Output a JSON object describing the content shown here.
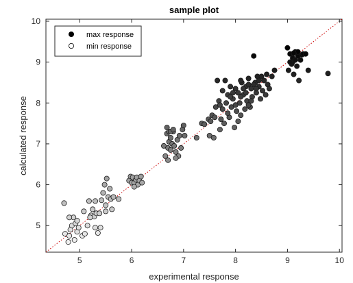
{
  "chart_data": {
    "type": "scatter",
    "title": "sample plot",
    "xlabel": "experimental response",
    "ylabel": "calculated response",
    "xlim": [
      4.35,
      10.05
    ],
    "ylim": [
      4.35,
      10.05
    ],
    "xticks": [
      5,
      6,
      7,
      8,
      9,
      10
    ],
    "yticks": [
      5,
      6,
      7,
      8,
      9,
      10
    ],
    "grid": false,
    "reference_line": {
      "style": "dotted",
      "color": "#cc0000",
      "from": [
        4.35,
        4.35
      ],
      "to": [
        10.05,
        10.05
      ]
    },
    "legend": {
      "position": "top-left",
      "entries": [
        {
          "label": "max response",
          "fill": "#000000"
        },
        {
          "label": "min response",
          "fill": "#ffffff"
        }
      ]
    },
    "series": [
      {
        "fill_by_value": true,
        "fill_range": [
          "#ffffff",
          "#000000"
        ],
        "points": [
          [
            4.7,
            5.55
          ],
          [
            4.72,
            4.8
          ],
          [
            4.78,
            4.6
          ],
          [
            4.8,
            4.75
          ],
          [
            4.82,
            4.9
          ],
          [
            4.85,
            5.0
          ],
          [
            4.88,
            5.2
          ],
          [
            4.9,
            4.65
          ],
          [
            4.92,
            5.05
          ],
          [
            4.95,
            4.85
          ],
          [
            4.95,
            5.12
          ],
          [
            4.98,
            4.95
          ],
          [
            5.05,
            4.75
          ],
          [
            5.08,
            5.35
          ],
          [
            5.1,
            4.8
          ],
          [
            4.8,
            5.2
          ],
          [
            5.15,
            5.0
          ],
          [
            5.18,
            5.6
          ],
          [
            5.22,
            5.25
          ],
          [
            5.25,
            5.4
          ],
          [
            5.28,
            5.22
          ],
          [
            5.3,
            5.6
          ],
          [
            5.32,
            5.3
          ],
          [
            5.35,
            4.82
          ],
          [
            5.38,
            5.3
          ],
          [
            5.4,
            4.95
          ],
          [
            5.42,
            5.62
          ],
          [
            5.45,
            5.8
          ],
          [
            5.48,
            6.0
          ],
          [
            5.5,
            5.5
          ],
          [
            5.52,
            6.15
          ],
          [
            5.55,
            5.7
          ],
          [
            5.58,
            5.9
          ],
          [
            5.6,
            5.65
          ],
          [
            5.62,
            5.4
          ],
          [
            5.65,
            5.7
          ],
          [
            5.5,
            5.35
          ],
          [
            5.75,
            5.65
          ],
          [
            5.2,
            5.2
          ],
          [
            5.3,
            4.95
          ],
          [
            5.95,
            6.1
          ],
          [
            5.98,
            6.2
          ],
          [
            6.0,
            6.05
          ],
          [
            6.02,
            6.18
          ],
          [
            6.05,
            6.05
          ],
          [
            6.08,
            6.12
          ],
          [
            6.1,
            6.18
          ],
          [
            6.12,
            6.0
          ],
          [
            6.15,
            6.1
          ],
          [
            6.18,
            6.2
          ],
          [
            6.2,
            6.05
          ],
          [
            6.05,
            5.95
          ],
          [
            6.62,
            6.95
          ],
          [
            6.65,
            6.7
          ],
          [
            6.68,
            7.25
          ],
          [
            6.7,
            6.9
          ],
          [
            6.72,
            7.3
          ],
          [
            6.72,
            7.05
          ],
          [
            6.75,
            6.85
          ],
          [
            6.75,
            7.15
          ],
          [
            6.78,
            7.0
          ],
          [
            6.8,
            7.3
          ],
          [
            6.82,
            6.95
          ],
          [
            6.85,
            6.8
          ],
          [
            6.88,
            7.1
          ],
          [
            6.9,
            6.7
          ],
          [
            6.92,
            7.2
          ],
          [
            6.95,
            6.9
          ],
          [
            6.98,
            7.35
          ],
          [
            6.7,
            6.6
          ],
          [
            6.68,
            7.4
          ],
          [
            6.85,
            6.65
          ],
          [
            7.0,
            7.45
          ],
          [
            7.02,
            7.2
          ],
          [
            6.75,
            7.3
          ],
          [
            6.8,
            7.35
          ],
          [
            7.25,
            7.15
          ],
          [
            7.35,
            7.5
          ],
          [
            7.4,
            7.48
          ],
          [
            7.48,
            7.6
          ],
          [
            7.5,
            7.2
          ],
          [
            7.52,
            7.55
          ],
          [
            7.55,
            7.7
          ],
          [
            7.58,
            7.15
          ],
          [
            7.62,
            7.9
          ],
          [
            7.65,
            8.55
          ],
          [
            7.68,
            8.05
          ],
          [
            7.7,
            7.35
          ],
          [
            7.72,
            7.6
          ],
          [
            7.75,
            8.3
          ],
          [
            7.78,
            7.5
          ],
          [
            7.8,
            8.55
          ],
          [
            7.82,
            8.0
          ],
          [
            7.85,
            8.2
          ],
          [
            7.88,
            7.65
          ],
          [
            7.9,
            8.4
          ],
          [
            7.92,
            7.9
          ],
          [
            7.95,
            8.1
          ],
          [
            7.98,
            7.4
          ],
          [
            8.0,
            8.35
          ],
          [
            8.02,
            7.8
          ],
          [
            8.05,
            8.25
          ],
          [
            8.08,
            8.0
          ],
          [
            8.1,
            7.7
          ],
          [
            8.12,
            8.5
          ],
          [
            8.15,
            8.2
          ],
          [
            8.18,
            7.85
          ],
          [
            8.2,
            8.4
          ],
          [
            8.22,
            8.05
          ],
          [
            8.25,
            8.6
          ],
          [
            8.28,
            7.9
          ],
          [
            8.3,
            8.35
          ],
          [
            8.32,
            8.15
          ],
          [
            8.35,
            9.15
          ],
          [
            8.38,
            8.5
          ],
          [
            8.4,
            8.25
          ],
          [
            8.42,
            8.65
          ],
          [
            8.45,
            8.4
          ],
          [
            8.48,
            8.1
          ],
          [
            8.5,
            8.65
          ],
          [
            8.52,
            8.3
          ],
          [
            8.55,
            8.55
          ],
          [
            8.58,
            8.2
          ],
          [
            8.6,
            8.7
          ],
          [
            8.62,
            8.45
          ],
          [
            8.65,
            8.35
          ],
          [
            8.7,
            8.65
          ],
          [
            8.75,
            8.8
          ],
          [
            7.85,
            7.75
          ],
          [
            7.95,
            8.25
          ],
          [
            8.05,
            7.55
          ],
          [
            8.15,
            8.35
          ],
          [
            8.25,
            7.95
          ],
          [
            8.35,
            8.45
          ],
          [
            8.45,
            8.55
          ],
          [
            7.75,
            7.85
          ],
          [
            7.9,
            8.15
          ],
          [
            8.0,
            7.95
          ],
          [
            8.1,
            8.15
          ],
          [
            8.2,
            8.25
          ],
          [
            8.3,
            8.05
          ],
          [
            8.4,
            8.35
          ],
          [
            7.6,
            7.65
          ],
          [
            7.7,
            7.95
          ],
          [
            8.1,
            8.55
          ],
          [
            8.25,
            8.45
          ],
          [
            9.0,
            9.35
          ],
          [
            9.02,
            8.8
          ],
          [
            9.05,
            9.2
          ],
          [
            9.08,
            8.95
          ],
          [
            9.1,
            9.1
          ],
          [
            9.12,
            8.7
          ],
          [
            9.15,
            9.25
          ],
          [
            9.18,
            8.9
          ],
          [
            9.2,
            9.15
          ],
          [
            9.22,
            8.55
          ],
          [
            9.25,
            9.05
          ],
          [
            9.28,
            9.18
          ],
          [
            9.3,
            9.2
          ],
          [
            9.35,
            9.2
          ],
          [
            9.4,
            8.8
          ],
          [
            9.1,
            9.0
          ],
          [
            9.15,
            9.05
          ],
          [
            9.05,
            9.0
          ],
          [
            9.2,
            9.25
          ],
          [
            9.12,
            9.22
          ],
          [
            9.78,
            8.72
          ]
        ]
      }
    ]
  }
}
